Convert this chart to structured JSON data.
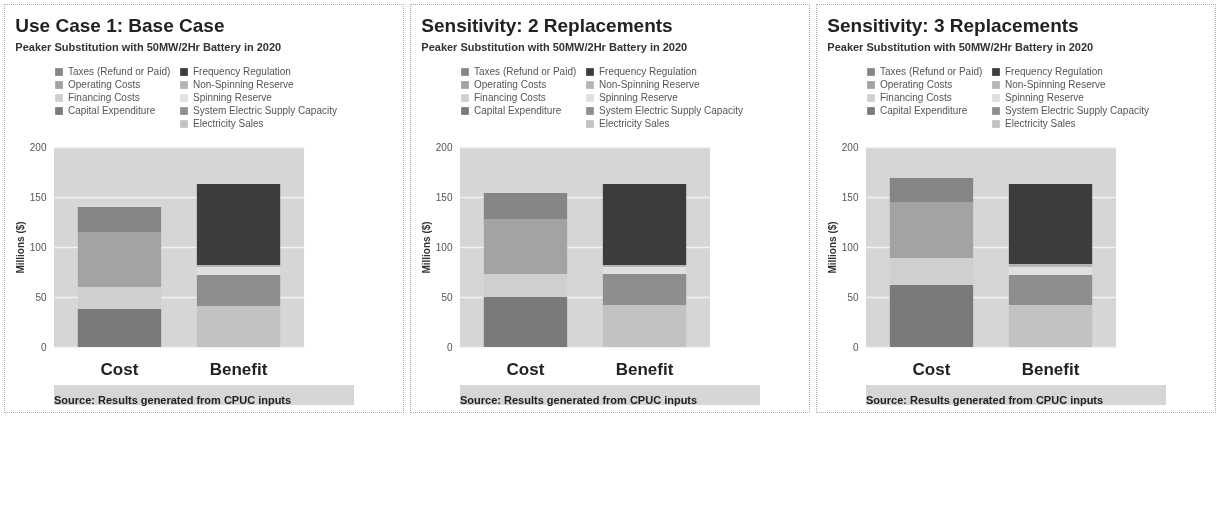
{
  "chart_data": [
    {
      "type": "bar",
      "title": "Use Case 1: Base Case",
      "subtitle": "Peaker Substitution with 50MW/2Hr Battery in 2020",
      "ylabel": "Millions ($)",
      "categories": [
        "Cost",
        "Benefit"
      ],
      "stacked": true,
      "ylim": [
        0,
        200
      ],
      "yticks": [
        0,
        50,
        100,
        150,
        200
      ],
      "grid": "y",
      "legend": "top",
      "annotations": [
        "Source: Results generated from CPUC inputs"
      ],
      "series": [
        {
          "name": "Capital Expenditure",
          "color": "#7a7a7a",
          "values": [
            38,
            null
          ]
        },
        {
          "name": "Financing Costs",
          "color": "#cfcfcf",
          "values": [
            22,
            null
          ]
        },
        {
          "name": "Operating Costs",
          "color": "#a3a3a3",
          "values": [
            55,
            null
          ]
        },
        {
          "name": "Taxes (Refund or Paid)",
          "color": "#858585",
          "values": [
            25,
            null
          ]
        },
        {
          "name": "Electricity Sales",
          "color": "#c2c2c2",
          "values": [
            null,
            41
          ]
        },
        {
          "name": "System Electric Supply Capacity",
          "color": "#8e8e8e",
          "values": [
            null,
            31
          ]
        },
        {
          "name": "Spinning Reserve",
          "color": "#e0e0e0",
          "values": [
            null,
            8
          ]
        },
        {
          "name": "Non-Spinning Reserve",
          "color": "#b5b5b5",
          "values": [
            null,
            2
          ]
        },
        {
          "name": "Frequency Regulation",
          "color": "#3c3c3c",
          "values": [
            null,
            81
          ]
        }
      ]
    },
    {
      "type": "bar",
      "title": "Sensitivity: 2 Replacements",
      "subtitle": "Peaker Substitution with 50MW/2Hr Battery in 2020",
      "ylabel": "Millions ($)",
      "categories": [
        "Cost",
        "Benefit"
      ],
      "stacked": true,
      "ylim": [
        0,
        200
      ],
      "yticks": [
        0,
        50,
        100,
        150,
        200
      ],
      "grid": "y",
      "legend": "top",
      "annotations": [
        "Source: Results generated from CPUC inputs"
      ],
      "series": [
        {
          "name": "Capital Expenditure",
          "color": "#7a7a7a",
          "values": [
            50,
            null
          ]
        },
        {
          "name": "Financing Costs",
          "color": "#cfcfcf",
          "values": [
            23,
            null
          ]
        },
        {
          "name": "Operating Costs",
          "color": "#a3a3a3",
          "values": [
            55,
            null
          ]
        },
        {
          "name": "Taxes (Refund or Paid)",
          "color": "#858585",
          "values": [
            26,
            null
          ]
        },
        {
          "name": "Electricity Sales",
          "color": "#c2c2c2",
          "values": [
            null,
            42
          ]
        },
        {
          "name": "System Electric Supply Capacity",
          "color": "#8e8e8e",
          "values": [
            null,
            31
          ]
        },
        {
          "name": "Spinning Reserve",
          "color": "#e0e0e0",
          "values": [
            null,
            7
          ]
        },
        {
          "name": "Non-Spinning Reserve",
          "color": "#b5b5b5",
          "values": [
            null,
            2
          ]
        },
        {
          "name": "Frequency Regulation",
          "color": "#3c3c3c",
          "values": [
            null,
            81
          ]
        }
      ]
    },
    {
      "type": "bar",
      "title": "Sensitivity: 3 Replacements",
      "subtitle": "Peaker Substitution with 50MW/2Hr Battery in 2020",
      "ylabel": "Millions ($)",
      "categories": [
        "Cost",
        "Benefit"
      ],
      "stacked": true,
      "ylim": [
        0,
        200
      ],
      "yticks": [
        0,
        50,
        100,
        150,
        200
      ],
      "grid": "y",
      "legend": "top",
      "annotations": [
        "Source: Results generated from CPUC inputs"
      ],
      "series": [
        {
          "name": "Capital Expenditure",
          "color": "#7a7a7a",
          "values": [
            62,
            null
          ]
        },
        {
          "name": "Financing Costs",
          "color": "#cfcfcf",
          "values": [
            27,
            null
          ]
        },
        {
          "name": "Operating Costs",
          "color": "#a3a3a3",
          "values": [
            56,
            null
          ]
        },
        {
          "name": "Taxes (Refund or Paid)",
          "color": "#858585",
          "values": [
            24,
            null
          ]
        },
        {
          "name": "Electricity Sales",
          "color": "#c2c2c2",
          "values": [
            null,
            42
          ]
        },
        {
          "name": "System Electric Supply Capacity",
          "color": "#8e8e8e",
          "values": [
            null,
            30
          ]
        },
        {
          "name": "Spinning Reserve",
          "color": "#e0e0e0",
          "values": [
            null,
            8
          ]
        },
        {
          "name": "Non-Spinning Reserve",
          "color": "#b5b5b5",
          "values": [
            null,
            3
          ]
        },
        {
          "name": "Frequency Regulation",
          "color": "#3c3c3c",
          "values": [
            null,
            80
          ]
        }
      ]
    }
  ]
}
